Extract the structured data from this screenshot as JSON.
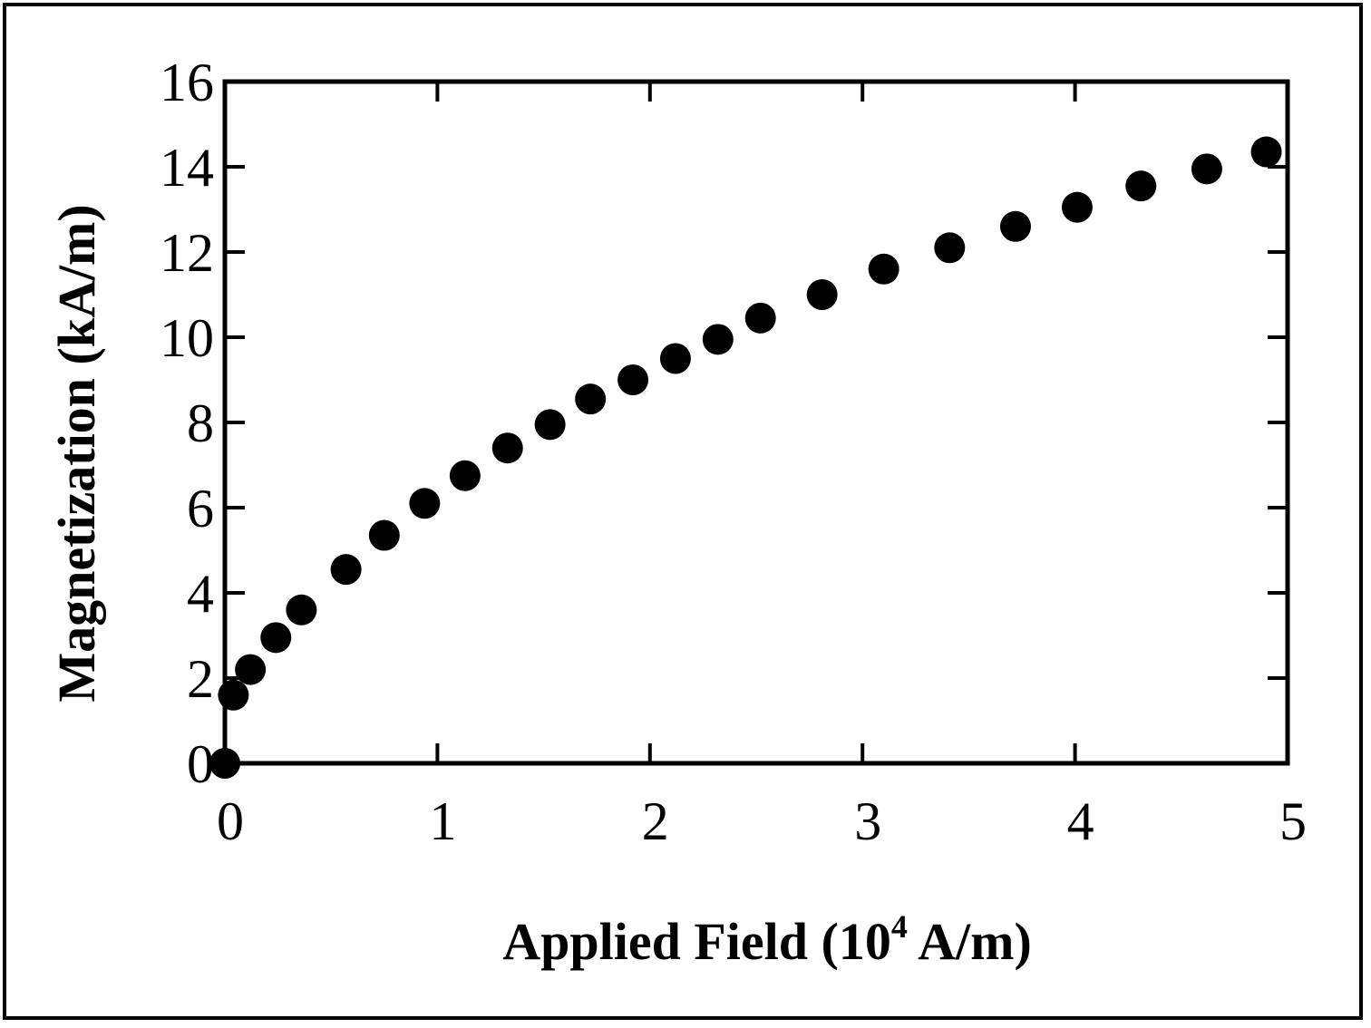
{
  "chart_data": {
    "type": "scatter",
    "xlabel": "Applied Field (10",
    "xlabel_sup": "4",
    "xlabel_unit": " A/m)",
    "ylabel": "Magnetization (kA/m)",
    "xlim": [
      0,
      5
    ],
    "ylim": [
      0,
      16
    ],
    "xticks": [
      0,
      1,
      2,
      3,
      4,
      5
    ],
    "yticks": [
      0,
      2,
      4,
      6,
      8,
      10,
      12,
      14,
      16
    ],
    "xtick_labels": [
      "0",
      "1",
      "2",
      "3",
      "4",
      "5"
    ],
    "ytick_labels": [
      "0",
      "2",
      "4",
      "6",
      "8",
      "10",
      "12",
      "14",
      "16"
    ],
    "grid": false,
    "marker_color": "#000000",
    "series": [
      {
        "x": [
          0.0,
          0.04,
          0.12,
          0.24,
          0.36,
          0.57,
          0.75,
          0.94,
          1.13,
          1.33,
          1.53,
          1.72,
          1.92,
          2.12,
          2.32,
          2.52,
          2.81,
          3.1,
          3.41,
          3.72,
          4.01,
          4.31,
          4.62,
          4.9
        ],
        "y": [
          0.0,
          1.6,
          2.2,
          2.95,
          3.6,
          4.55,
          5.35,
          6.1,
          6.75,
          7.4,
          7.95,
          8.55,
          9.0,
          9.5,
          9.95,
          10.45,
          11.0,
          11.6,
          12.1,
          12.6,
          13.05,
          13.55,
          13.95,
          14.35
        ]
      }
    ]
  }
}
